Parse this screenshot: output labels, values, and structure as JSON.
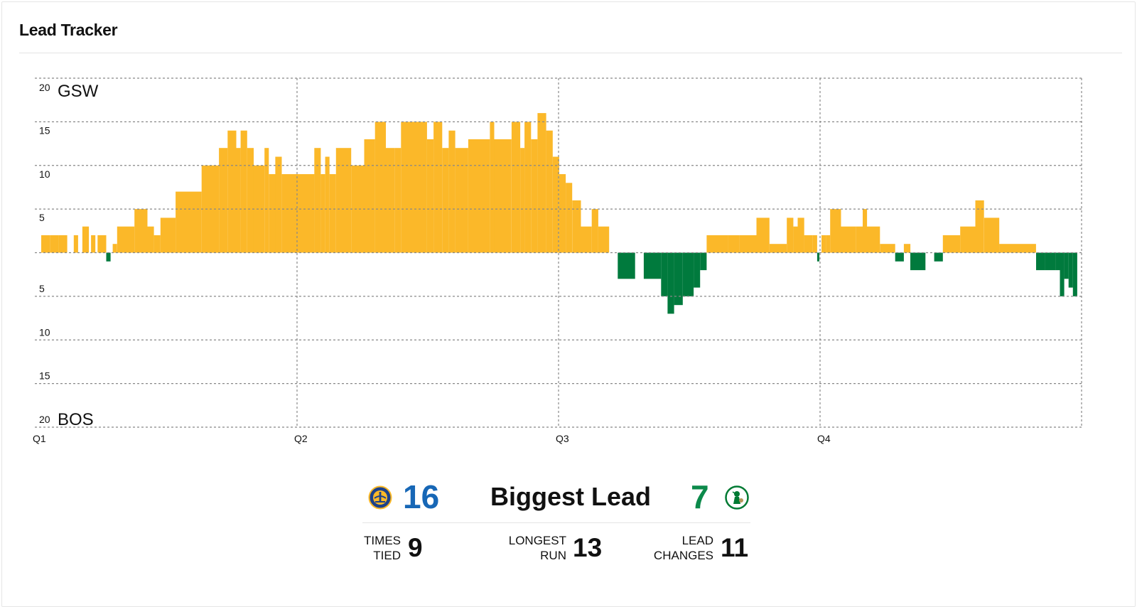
{
  "header": {
    "title": "Lead Tracker"
  },
  "colors": {
    "gsw": "#fbb829",
    "bos": "#007a3d",
    "gsw_text": "#1767b6",
    "bos_text": "#0c8a4b",
    "grid": "#888888"
  },
  "chart_data": {
    "type": "bar",
    "title": "",
    "xlabel": "",
    "ylabel": "",
    "top_team": "GSW",
    "bottom_team": "BOS",
    "quarters": [
      "Q1",
      "Q2",
      "Q3",
      "Q4"
    ],
    "ylim": [
      -20,
      20
    ],
    "y_ticks_top": [
      "20",
      "15",
      "10",
      "5"
    ],
    "y_ticks_bottom": [
      "5",
      "10",
      "15",
      "20"
    ],
    "grid": true,
    "x_unit": "game minutes (0-48)",
    "segments": [
      [
        0.0,
        0.4,
        2
      ],
      [
        0.4,
        0.8,
        2
      ],
      [
        0.8,
        1.2,
        2
      ],
      [
        1.5,
        1.7,
        2
      ],
      [
        1.9,
        2.2,
        3
      ],
      [
        2.3,
        2.5,
        2
      ],
      [
        2.6,
        3.0,
        2
      ],
      [
        3.0,
        3.2,
        -1
      ],
      [
        3.3,
        3.5,
        1
      ],
      [
        3.5,
        4.3,
        3
      ],
      [
        4.3,
        4.9,
        5
      ],
      [
        4.9,
        5.2,
        3
      ],
      [
        5.2,
        5.5,
        2
      ],
      [
        5.5,
        6.2,
        4
      ],
      [
        6.2,
        7.4,
        7
      ],
      [
        7.4,
        8.2,
        10
      ],
      [
        8.2,
        8.6,
        12
      ],
      [
        8.6,
        9.0,
        14
      ],
      [
        9.0,
        9.2,
        12
      ],
      [
        9.2,
        9.5,
        14
      ],
      [
        9.5,
        9.8,
        12
      ],
      [
        9.8,
        10.3,
        10
      ],
      [
        10.3,
        10.5,
        12
      ],
      [
        10.5,
        10.8,
        9
      ],
      [
        10.8,
        11.1,
        11
      ],
      [
        11.1,
        12.6,
        9
      ],
      [
        12.6,
        12.9,
        12
      ],
      [
        12.9,
        13.1,
        9
      ],
      [
        13.1,
        13.3,
        11
      ],
      [
        13.3,
        13.6,
        9
      ],
      [
        13.6,
        14.3,
        12
      ],
      [
        14.3,
        14.9,
        10
      ],
      [
        14.9,
        15.4,
        13
      ],
      [
        15.4,
        15.9,
        15
      ],
      [
        15.9,
        16.3,
        12
      ],
      [
        16.3,
        16.6,
        12
      ],
      [
        16.6,
        17.8,
        15
      ],
      [
        17.8,
        18.1,
        13
      ],
      [
        18.1,
        18.5,
        15
      ],
      [
        18.5,
        18.8,
        12
      ],
      [
        18.8,
        19.1,
        14
      ],
      [
        19.1,
        19.7,
        12
      ],
      [
        19.7,
        20.7,
        13
      ],
      [
        20.7,
        20.9,
        15
      ],
      [
        20.9,
        21.7,
        13
      ],
      [
        21.7,
        22.1,
        15
      ],
      [
        22.1,
        22.3,
        12
      ],
      [
        22.3,
        22.6,
        15
      ],
      [
        22.6,
        22.9,
        13
      ],
      [
        22.9,
        23.3,
        16
      ],
      [
        23.3,
        23.6,
        14
      ],
      [
        23.6,
        23.9,
        11
      ],
      [
        23.9,
        24.2,
        9
      ],
      [
        24.2,
        24.5,
        8
      ],
      [
        24.5,
        24.9,
        6
      ],
      [
        24.9,
        25.4,
        3
      ],
      [
        25.4,
        25.7,
        5
      ],
      [
        25.7,
        26.2,
        3
      ],
      [
        26.2,
        26.6,
        0
      ],
      [
        26.6,
        27.4,
        -3
      ],
      [
        27.4,
        27.8,
        0
      ],
      [
        27.8,
        28.6,
        -3
      ],
      [
        28.6,
        28.9,
        -5
      ],
      [
        28.9,
        29.2,
        -7
      ],
      [
        29.2,
        29.6,
        -6
      ],
      [
        29.6,
        30.1,
        -5
      ],
      [
        30.1,
        30.4,
        -4
      ],
      [
        30.4,
        30.7,
        -2
      ],
      [
        30.7,
        31.7,
        2
      ],
      [
        31.7,
        32.2,
        2
      ],
      [
        32.2,
        33.0,
        2
      ],
      [
        33.0,
        33.6,
        4
      ],
      [
        33.6,
        34.4,
        1
      ],
      [
        34.4,
        34.7,
        4
      ],
      [
        34.7,
        34.9,
        3
      ],
      [
        34.9,
        35.2,
        4
      ],
      [
        35.2,
        35.6,
        2
      ],
      [
        35.6,
        35.8,
        2
      ],
      [
        35.8,
        35.9,
        -1
      ],
      [
        35.9,
        36.0,
        0
      ],
      [
        36.0,
        36.2,
        2
      ],
      [
        36.2,
        36.4,
        2
      ],
      [
        36.4,
        36.9,
        5
      ],
      [
        36.9,
        37.6,
        3
      ],
      [
        37.6,
        37.9,
        3
      ],
      [
        37.9,
        38.1,
        5
      ],
      [
        38.1,
        38.7,
        3
      ],
      [
        38.7,
        39.4,
        1
      ],
      [
        39.4,
        39.8,
        -1
      ],
      [
        39.8,
        40.1,
        1
      ],
      [
        40.1,
        40.8,
        -2
      ],
      [
        40.8,
        41.2,
        0
      ],
      [
        41.2,
        41.6,
        -1
      ],
      [
        41.6,
        42.4,
        2
      ],
      [
        42.4,
        43.1,
        3
      ],
      [
        43.1,
        43.5,
        6
      ],
      [
        43.5,
        44.2,
        4
      ],
      [
        44.2,
        45.9,
        1
      ],
      [
        45.9,
        46.3,
        -2
      ],
      [
        46.3,
        46.8,
        -2
      ],
      [
        46.8,
        47.0,
        -2
      ],
      [
        47.0,
        47.2,
        -5
      ],
      [
        47.2,
        47.4,
        -3
      ],
      [
        47.4,
        47.6,
        -4
      ],
      [
        47.6,
        47.8,
        -5
      ]
    ]
  },
  "summary": {
    "gsw_biggest_lead": "16",
    "biggest_lead_label": "Biggest Lead",
    "bos_biggest_lead": "7",
    "times_tied_l1": "TIMES",
    "times_tied_l2": "TIED",
    "times_tied": "9",
    "longest_run_l1": "LONGEST",
    "longest_run_l2": "RUN",
    "longest_run": "13",
    "lead_changes_l1": "LEAD",
    "lead_changes_l2": "CHANGES",
    "lead_changes": "11"
  },
  "icons": {
    "gsw_logo": "warriors-logo-icon",
    "bos_logo": "celtics-logo-icon"
  }
}
